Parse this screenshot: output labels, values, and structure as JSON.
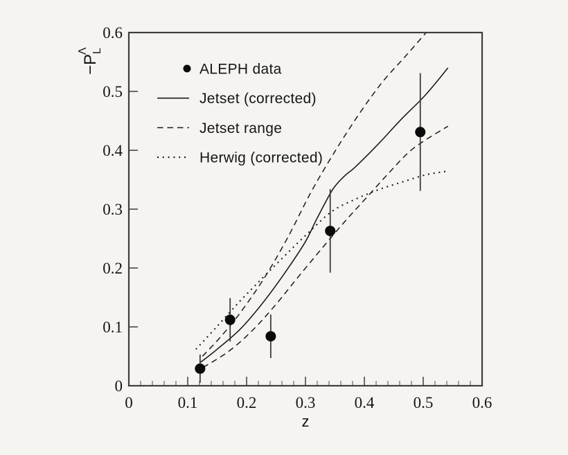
{
  "figure": {
    "bg_color": "#f5f4f1",
    "ink_color": "#1a1a1a",
    "frame_color": "#3d3d3d",
    "major_tick_color": "#5a5a5a",
    "minor_tick_color": "#7a7a7a"
  },
  "chart_data": {
    "type": "scatter",
    "title": "",
    "xlabel": "z",
    "ylabel": {
      "prefix": "−P",
      "sub": "L",
      "sup": "Λ"
    },
    "xlim": [
      0,
      0.6
    ],
    "ylim": [
      0,
      0.6
    ],
    "grid": false,
    "legend_position": "top-left-inside",
    "x_major_ticks": [
      0,
      0.1,
      0.2,
      0.3,
      0.4,
      0.5,
      0.6
    ],
    "x_tick_labels": [
      "0",
      "0.1",
      "0.2",
      "0.3",
      "0.4",
      "0.5",
      "0.6"
    ],
    "x_minor_step": 0.02,
    "y_major_ticks": [
      0,
      0.1,
      0.2,
      0.3,
      0.4,
      0.5,
      0.6
    ],
    "y_tick_labels": [
      "0",
      "0.1",
      "0.2",
      "0.3",
      "0.4",
      "0.5",
      "0.6"
    ],
    "legend": [
      {
        "marker": "dot",
        "label": "ALEPH data"
      },
      {
        "marker": "solid",
        "label": "Jetset (corrected)"
      },
      {
        "marker": "dashed",
        "label": "Jetset range"
      },
      {
        "marker": "dotted",
        "label": "Herwig (corrected)"
      }
    ],
    "data_points": {
      "name": "ALEPH data",
      "z": [
        0.121,
        0.172,
        0.241,
        0.342,
        0.495
      ],
      "p": [
        0.029,
        0.112,
        0.084,
        0.263,
        0.431
      ],
      "err": [
        0.024,
        0.037,
        0.037,
        0.071,
        0.1
      ]
    },
    "series": [
      {
        "name": "Jetset (corrected)",
        "style": "solid",
        "z": [
          0.122,
          0.15,
          0.19,
          0.23,
          0.27,
          0.3,
          0.32,
          0.346,
          0.366,
          0.385,
          0.424,
          0.464,
          0.503,
          0.542
        ],
        "p": [
          0.04,
          0.062,
          0.097,
          0.144,
          0.199,
          0.245,
          0.285,
          0.333,
          0.356,
          0.372,
          0.411,
          0.454,
          0.493,
          0.54
        ]
      },
      {
        "name": "Jetset range (upper)",
        "style": "dashed",
        "z": [
          0.125,
          0.155,
          0.19,
          0.23,
          0.27,
          0.31,
          0.35,
          0.39,
          0.43,
          0.47,
          0.505
        ],
        "p": [
          0.05,
          0.082,
          0.125,
          0.183,
          0.252,
          0.33,
          0.398,
          0.46,
          0.515,
          0.56,
          0.6
        ]
      },
      {
        "name": "Jetset range (lower)",
        "style": "dashed",
        "z": [
          0.126,
          0.169,
          0.209,
          0.248,
          0.287,
          0.326,
          0.366,
          0.405,
          0.444,
          0.483,
          0.542
        ],
        "p": [
          0.031,
          0.058,
          0.093,
          0.136,
          0.184,
          0.231,
          0.278,
          0.321,
          0.364,
          0.403,
          0.441
        ]
      },
      {
        "name": "Herwig (corrected)",
        "style": "dotted",
        "z": [
          0.114,
          0.15,
          0.189,
          0.228,
          0.267,
          0.307,
          0.346,
          0.385,
          0.424,
          0.464,
          0.503,
          0.538
        ],
        "p": [
          0.062,
          0.101,
          0.144,
          0.184,
          0.223,
          0.262,
          0.297,
          0.317,
          0.333,
          0.346,
          0.358,
          0.364
        ]
      }
    ]
  }
}
